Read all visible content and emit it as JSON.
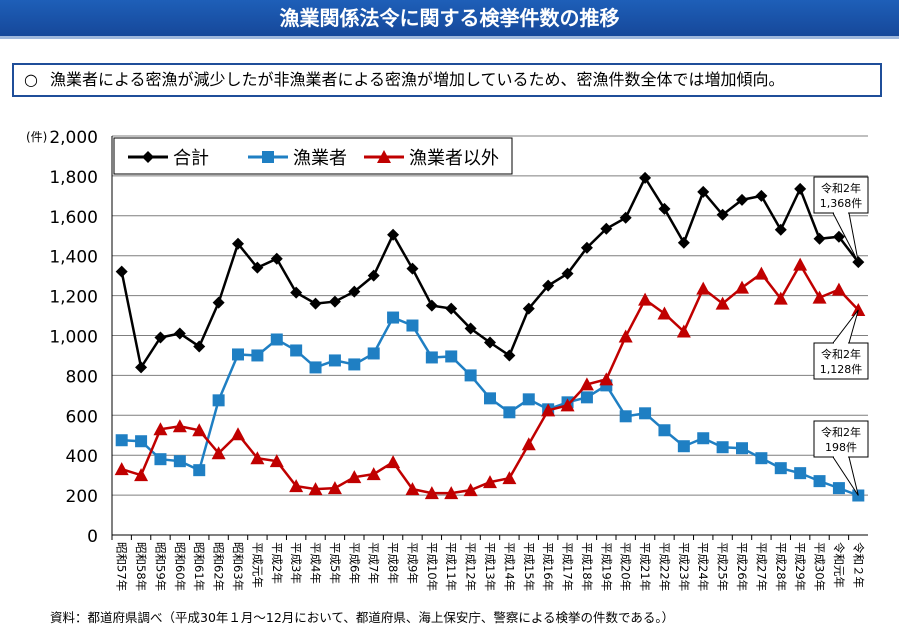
{
  "header": {
    "title": "漁業関係法令に関する検挙件数の推移",
    "summary_bullet": "○",
    "summary": "漁業者による密漁が減少したが非漁業者による密漁が増加しているため、密漁件数全体では増加傾向。"
  },
  "source": "資料：都道府県調べ（平成30年１月～12月において、都道府県、海上保安庁、警察による検挙の件数である。）",
  "colors": {
    "header_bg": "#1a54a8",
    "total": "#000000",
    "fisher": "#1f7fc3",
    "non_fisher": "#c00000"
  },
  "chart_data": {
    "type": "line",
    "unit_label": "(件)",
    "ylim": [
      0,
      2000
    ],
    "yticks": [
      "0",
      "200",
      "400",
      "600",
      "800",
      "1,000",
      "1,200",
      "1,400",
      "1,600",
      "1,800",
      "2,000"
    ],
    "grid": true,
    "legend_position": "top-left",
    "categories": [
      "昭和57年",
      "昭和58年",
      "昭和59年",
      "昭和60年",
      "昭和61年",
      "昭和62年",
      "昭和63年",
      "平成元年",
      "平成2年",
      "平成3年",
      "平成4年",
      "平成5年",
      "平成6年",
      "平成7年",
      "平成8年",
      "平成9年",
      "平成10年",
      "平成11年",
      "平成12年",
      "平成13年",
      "平成14年",
      "平成15年",
      "平成16年",
      "平成17年",
      "平成18年",
      "平成19年",
      "平成20年",
      "平成21年",
      "平成22年",
      "平成23年",
      "平成24年",
      "平成25年",
      "平成26年",
      "平成27年",
      "平成28年",
      "平成29年",
      "平成30年",
      "令和元年",
      "令和２年"
    ],
    "series": [
      {
        "name": "合計",
        "color": "#000000",
        "marker": "diamond",
        "values": [
          1320,
          840,
          990,
          1010,
          945,
          1165,
          1460,
          1340,
          1385,
          1215,
          1160,
          1170,
          1220,
          1300,
          1505,
          1335,
          1150,
          1135,
          1035,
          965,
          900,
          1135,
          1250,
          1310,
          1440,
          1535,
          1590,
          1790,
          1635,
          1465,
          1720,
          1605,
          1680,
          1700,
          1530,
          1735,
          1485,
          1495,
          1368
        ]
      },
      {
        "name": "漁業者",
        "color": "#1f7fc3",
        "marker": "square",
        "values": [
          475,
          470,
          380,
          370,
          325,
          675,
          905,
          900,
          980,
          925,
          840,
          875,
          855,
          910,
          1090,
          1050,
          890,
          895,
          800,
          685,
          615,
          680,
          630,
          665,
          690,
          750,
          595,
          610,
          525,
          445,
          485,
          440,
          435,
          385,
          335,
          310,
          270,
          235,
          198
        ]
      },
      {
        "name": "漁業者以外",
        "color": "#c00000",
        "marker": "triangle",
        "values": [
          330,
          300,
          530,
          545,
          525,
          410,
          505,
          385,
          370,
          245,
          230,
          235,
          290,
          305,
          365,
          230,
          210,
          210,
          225,
          265,
          285,
          455,
          625,
          650,
          755,
          780,
          995,
          1180,
          1110,
          1020,
          1235,
          1160,
          1240,
          1310,
          1185,
          1355,
          1190,
          1230,
          1128
        ]
      }
    ],
    "annotations": [
      {
        "text": [
          "令和2年",
          "1,368件"
        ],
        "series": 0
      },
      {
        "text": [
          "令和2年",
          "1,128件"
        ],
        "series": 2
      },
      {
        "text": [
          "令和2年",
          "198件"
        ],
        "series": 1
      }
    ]
  }
}
